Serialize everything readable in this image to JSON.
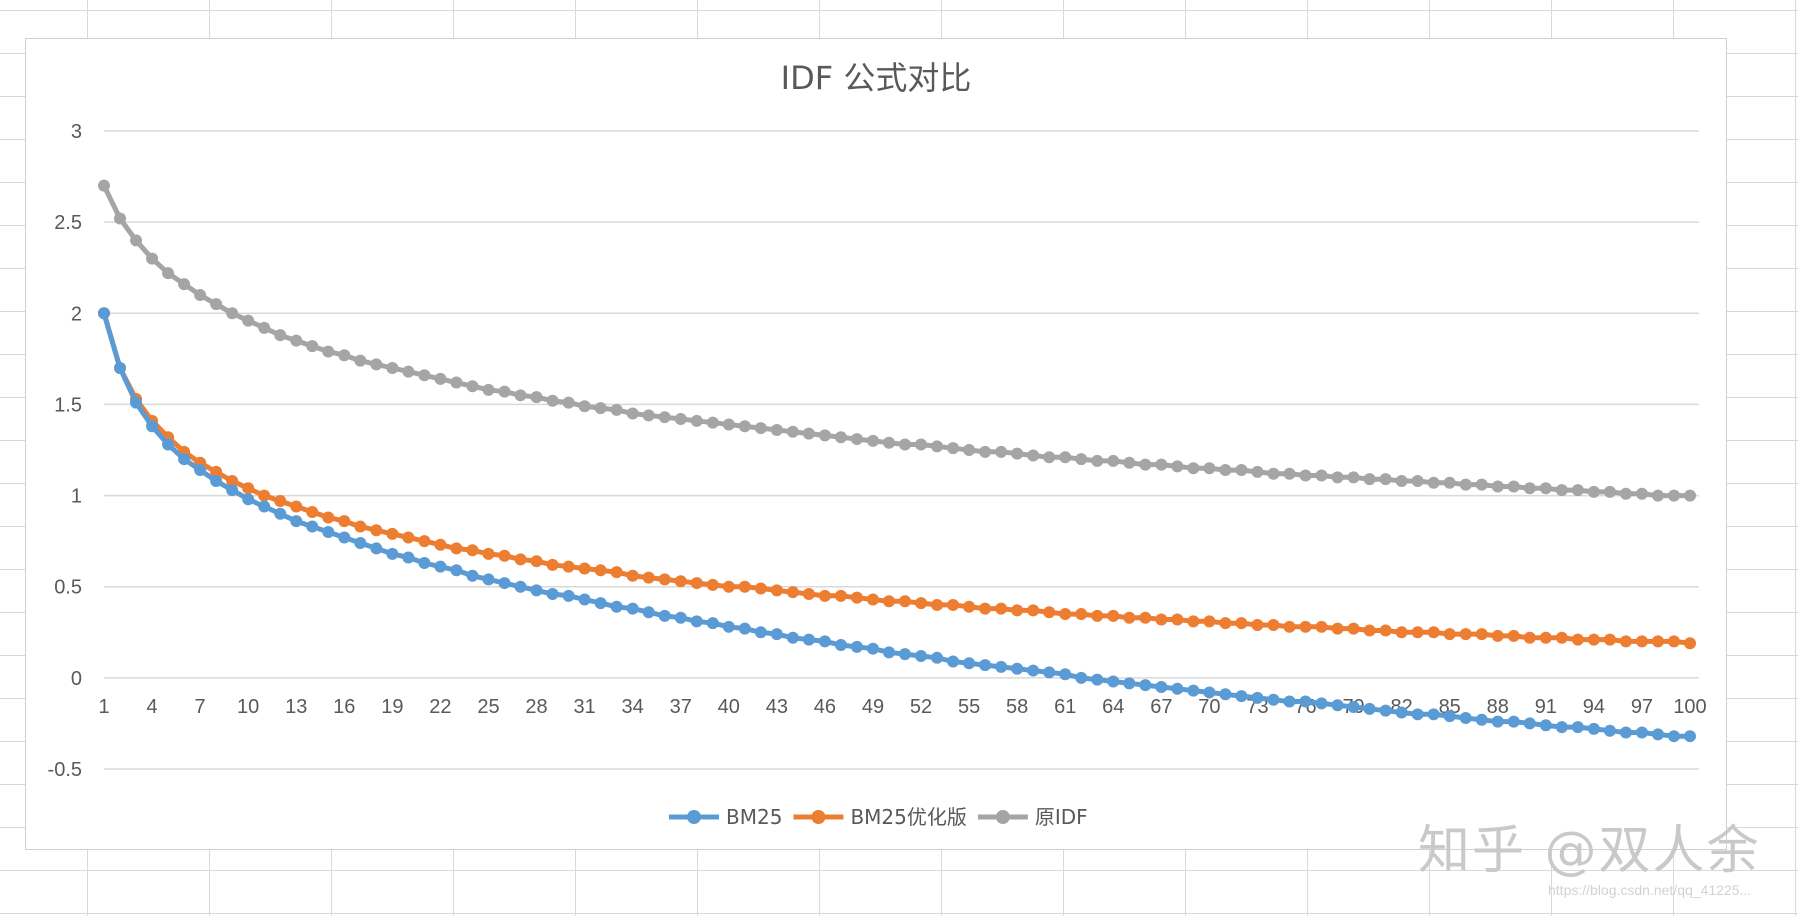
{
  "watermark": "知乎 @双人余",
  "source_note": "https://blog.csdn.net/qq_41225...",
  "colors": {
    "bm25": "#5B9BD5",
    "bm25_opt": "#ED7D31",
    "idf": "#A5A5A5",
    "grid": "#D9D9D9",
    "text": "#595959"
  },
  "chart_data": {
    "type": "line",
    "title": "IDF 公式对比",
    "xlabel": "",
    "ylabel": "",
    "x_range": [
      1,
      100
    ],
    "ylim": [
      -0.5,
      3
    ],
    "yticks": [
      3,
      2.5,
      2,
      1.5,
      1,
      0.5,
      0,
      -0.5
    ],
    "ytick_labels": [
      "3",
      "2.5",
      "2",
      "1.5",
      "1",
      "0.5",
      "0",
      "-0.5"
    ],
    "xtick_values": [
      1,
      4,
      7,
      10,
      13,
      16,
      19,
      22,
      25,
      28,
      31,
      34,
      37,
      40,
      43,
      46,
      49,
      52,
      55,
      58,
      61,
      64,
      67,
      70,
      73,
      76,
      79,
      82,
      85,
      88,
      91,
      94,
      97,
      100
    ],
    "xtick_labels": [
      "1",
      "4",
      "7",
      "10",
      "13",
      "16",
      "19",
      "22",
      "25",
      "28",
      "31",
      "34",
      "37",
      "40",
      "43",
      "46",
      "49",
      "52",
      "55",
      "58",
      "61",
      "64",
      "67",
      "70",
      "73",
      "76",
      "79",
      "82",
      "85",
      "88",
      "91",
      "94",
      "97",
      "100"
    ],
    "grid": true,
    "legend_position": "bottom",
    "series": [
      {
        "name": "BM25",
        "color": "#5B9BD5",
        "values": [
          2.0,
          1.7,
          1.51,
          1.38,
          1.28,
          1.2,
          1.14,
          1.08,
          1.03,
          0.98,
          0.94,
          0.9,
          0.86,
          0.83,
          0.8,
          0.77,
          0.74,
          0.71,
          0.68,
          0.66,
          0.63,
          0.61,
          0.59,
          0.56,
          0.54,
          0.52,
          0.5,
          0.48,
          0.46,
          0.45,
          0.43,
          0.41,
          0.39,
          0.38,
          0.36,
          0.34,
          0.33,
          0.31,
          0.3,
          0.28,
          0.27,
          0.25,
          0.24,
          0.22,
          0.21,
          0.2,
          0.18,
          0.17,
          0.16,
          0.14,
          0.13,
          0.12,
          0.11,
          0.09,
          0.08,
          0.07,
          0.06,
          0.05,
          0.04,
          0.03,
          0.02,
          0.0,
          -0.01,
          -0.02,
          -0.03,
          -0.04,
          -0.05,
          -0.06,
          -0.07,
          -0.08,
          -0.09,
          -0.1,
          -0.11,
          -0.12,
          -0.13,
          -0.13,
          -0.14,
          -0.15,
          -0.16,
          -0.17,
          -0.18,
          -0.19,
          -0.2,
          -0.2,
          -0.21,
          -0.22,
          -0.23,
          -0.24,
          -0.24,
          -0.25,
          -0.26,
          -0.27,
          -0.27,
          -0.28,
          -0.29,
          -0.3,
          -0.3,
          -0.31,
          -0.32,
          -0.32
        ]
      },
      {
        "name": "BM25优化版",
        "color": "#ED7D31",
        "values": [
          2.0,
          1.7,
          1.53,
          1.41,
          1.32,
          1.24,
          1.18,
          1.13,
          1.08,
          1.04,
          1.0,
          0.97,
          0.94,
          0.91,
          0.88,
          0.86,
          0.83,
          0.81,
          0.79,
          0.77,
          0.75,
          0.73,
          0.71,
          0.7,
          0.68,
          0.67,
          0.65,
          0.64,
          0.62,
          0.61,
          0.6,
          0.59,
          0.58,
          0.56,
          0.55,
          0.54,
          0.53,
          0.52,
          0.51,
          0.5,
          0.5,
          0.49,
          0.48,
          0.47,
          0.46,
          0.45,
          0.45,
          0.44,
          0.43,
          0.42,
          0.42,
          0.41,
          0.4,
          0.4,
          0.39,
          0.38,
          0.38,
          0.37,
          0.37,
          0.36,
          0.35,
          0.35,
          0.34,
          0.34,
          0.33,
          0.33,
          0.32,
          0.32,
          0.31,
          0.31,
          0.3,
          0.3,
          0.29,
          0.29,
          0.28,
          0.28,
          0.28,
          0.27,
          0.27,
          0.26,
          0.26,
          0.25,
          0.25,
          0.25,
          0.24,
          0.24,
          0.24,
          0.23,
          0.23,
          0.22,
          0.22,
          0.22,
          0.21,
          0.21,
          0.21,
          0.2,
          0.2,
          0.2,
          0.2,
          0.19
        ]
      },
      {
        "name": "原IDF",
        "color": "#A5A5A5",
        "values": [
          2.7,
          2.52,
          2.4,
          2.3,
          2.22,
          2.16,
          2.1,
          2.05,
          2.0,
          1.96,
          1.92,
          1.88,
          1.85,
          1.82,
          1.79,
          1.77,
          1.74,
          1.72,
          1.7,
          1.68,
          1.66,
          1.64,
          1.62,
          1.6,
          1.58,
          1.57,
          1.55,
          1.54,
          1.52,
          1.51,
          1.49,
          1.48,
          1.47,
          1.45,
          1.44,
          1.43,
          1.42,
          1.41,
          1.4,
          1.39,
          1.38,
          1.37,
          1.36,
          1.35,
          1.34,
          1.33,
          1.32,
          1.31,
          1.3,
          1.29,
          1.28,
          1.28,
          1.27,
          1.26,
          1.25,
          1.24,
          1.24,
          1.23,
          1.22,
          1.21,
          1.21,
          1.2,
          1.19,
          1.19,
          1.18,
          1.17,
          1.17,
          1.16,
          1.15,
          1.15,
          1.14,
          1.14,
          1.13,
          1.12,
          1.12,
          1.11,
          1.11,
          1.1,
          1.1,
          1.09,
          1.09,
          1.08,
          1.08,
          1.07,
          1.07,
          1.06,
          1.06,
          1.05,
          1.05,
          1.04,
          1.04,
          1.03,
          1.03,
          1.02,
          1.02,
          1.01,
          1.01,
          1.0,
          1.0,
          1.0
        ]
      }
    ]
  }
}
